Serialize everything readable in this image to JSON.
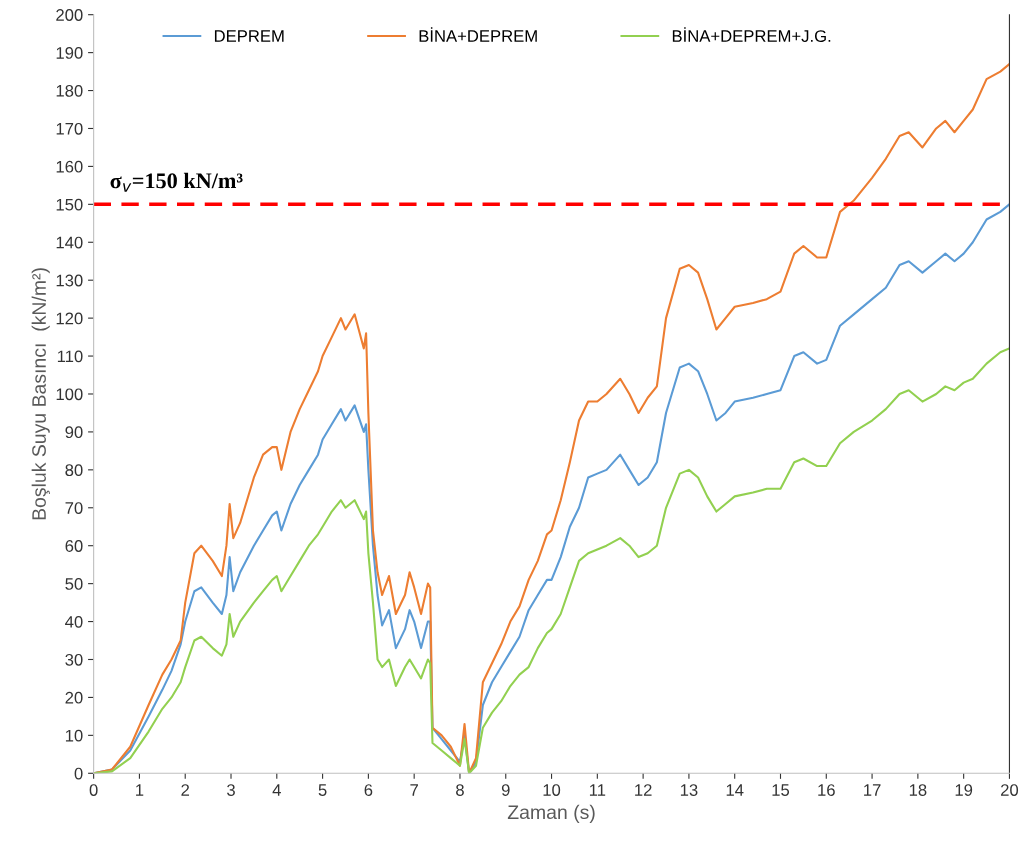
{
  "chart_data": {
    "type": "line",
    "xlabel": "Zaman (s)",
    "ylabel": "Boşluk Suyu Basıncı  (kN/m²)",
    "x": [
      0,
      0.4,
      0.8,
      1.2,
      1.5,
      1.7,
      1.9,
      2.0,
      2.2,
      2.35,
      2.6,
      2.8,
      2.9,
      2.97,
      3.05,
      3.2,
      3.5,
      3.7,
      3.9,
      4.0,
      4.1,
      4.3,
      4.5,
      4.7,
      4.9,
      5.0,
      5.2,
      5.4,
      5.5,
      5.7,
      5.9,
      5.95,
      6.0,
      6.1,
      6.2,
      6.3,
      6.45,
      6.6,
      6.8,
      6.9,
      7.0,
      7.15,
      7.3,
      7.35,
      7.4,
      7.6,
      7.8,
      8.0,
      8.1,
      8.2,
      8.35,
      8.5,
      8.7,
      8.9,
      9.1,
      9.3,
      9.5,
      9.7,
      9.9,
      10.0,
      10.2,
      10.4,
      10.6,
      10.8,
      11.0,
      11.2,
      11.5,
      11.7,
      11.9,
      12.1,
      12.3,
      12.5,
      12.8,
      13.0,
      13.2,
      13.4,
      13.6,
      13.8,
      14.0,
      14.4,
      14.7,
      15.0,
      15.3,
      15.5,
      15.8,
      16.0,
      16.3,
      16.6,
      17.0,
      17.3,
      17.6,
      17.8,
      18.1,
      18.4,
      18.6,
      18.8,
      19.0,
      19.2,
      19.5,
      19.8,
      20
    ],
    "series": [
      {
        "name": "DEPREM",
        "color": "#5b9bd5",
        "values": [
          0,
          1,
          6,
          15,
          22,
          27,
          34,
          40,
          48,
          49,
          45,
          42,
          47,
          57,
          48,
          53,
          60,
          64,
          68,
          69,
          64,
          71,
          76,
          80,
          84,
          88,
          92,
          96,
          93,
          97,
          90,
          92,
          80,
          60,
          47,
          39,
          43,
          33,
          38,
          43,
          40,
          33,
          40,
          40,
          12,
          9,
          6,
          3,
          10,
          0,
          3,
          18,
          24,
          28,
          32,
          36,
          43,
          47,
          51,
          51,
          57,
          65,
          70,
          78,
          79,
          80,
          84,
          80,
          76,
          78,
          82,
          95,
          107,
          108,
          106,
          100,
          93,
          95,
          98,
          99,
          100,
          101,
          110,
          111,
          108,
          109,
          118,
          121,
          125,
          128,
          134,
          135,
          132,
          135,
          137,
          135,
          137,
          140,
          146,
          148,
          150
        ]
      },
      {
        "name": "BİNA+DEPREM",
        "color": "#ed7d31",
        "values": [
          0,
          1,
          7,
          18,
          26,
          30,
          35,
          45,
          58,
          60,
          56,
          52,
          60,
          71,
          62,
          66,
          78,
          84,
          86,
          86,
          80,
          90,
          96,
          101,
          106,
          110,
          115,
          120,
          117,
          121,
          112,
          116,
          95,
          64,
          53,
          47,
          52,
          42,
          47,
          53,
          49,
          42,
          50,
          49,
          12,
          10,
          7,
          2,
          13,
          0,
          4,
          24,
          29,
          34,
          40,
          44,
          51,
          56,
          63,
          64,
          72,
          82,
          93,
          98,
          98,
          100,
          104,
          100,
          95,
          99,
          102,
          120,
          133,
          134,
          132,
          125,
          117,
          120,
          123,
          124,
          125,
          127,
          137,
          139,
          136,
          136,
          148,
          151,
          157,
          162,
          168,
          169,
          165,
          170,
          172,
          169,
          172,
          175,
          183,
          185,
          187
        ]
      },
      {
        "name": "BİNA+DEPREM+J.G.",
        "color": "#92d050",
        "values": [
          0,
          0.5,
          4,
          11,
          17,
          20,
          24,
          28,
          35,
          36,
          33,
          31,
          34,
          42,
          36,
          40,
          45,
          48,
          51,
          52,
          48,
          52,
          56,
          60,
          63,
          65,
          69,
          72,
          70,
          72,
          67,
          69,
          58,
          45,
          30,
          28,
          30,
          23,
          28,
          30,
          28,
          25,
          30,
          29,
          8,
          6,
          4,
          2,
          9,
          0,
          2,
          12,
          16,
          19,
          23,
          26,
          28,
          33,
          37,
          38,
          42,
          49,
          56,
          58,
          59,
          60,
          62,
          60,
          57,
          58,
          60,
          70,
          79,
          80,
          78,
          73,
          69,
          71,
          73,
          74,
          75,
          75,
          82,
          83,
          81,
          81,
          87,
          90,
          93,
          96,
          100,
          101,
          98,
          100,
          102,
          101,
          103,
          104,
          108,
          111,
          112
        ]
      }
    ],
    "ref_lines": [
      {
        "axis": "y",
        "value": 150,
        "label": "σ$_{v}$=150 kN/m³",
        "color": "#ff0000",
        "line_style": "dashed"
      }
    ],
    "xlim": [
      0,
      20
    ],
    "xticks": [
      0,
      1,
      2,
      3,
      4,
      5,
      6,
      7,
      8,
      9,
      10,
      11,
      12,
      13,
      14,
      15,
      16,
      17,
      18,
      19,
      20
    ],
    "ylim": [
      0,
      200
    ],
    "yticks": [
      0,
      10,
      20,
      30,
      40,
      50,
      60,
      70,
      80,
      90,
      100,
      110,
      120,
      130,
      140,
      150,
      160,
      170,
      180,
      190,
      200
    ],
    "legend": "top left",
    "grid": false
  }
}
